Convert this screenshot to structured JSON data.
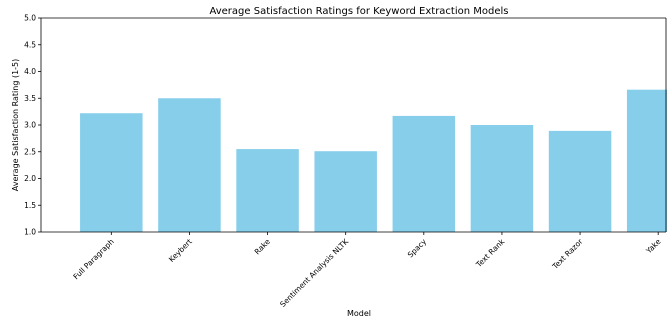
{
  "chart_data": {
    "type": "bar",
    "title": "Average Satisfaction Ratings for Keyword Extraction Models",
    "xlabel": "Model",
    "ylabel": "Average Satisfaction Rating (1-5)",
    "categories": [
      "Full Paragraph",
      "Keybert",
      "Rake",
      "Sentiment Analysis NLTK",
      "Spacy",
      "Text Rank",
      "Text Razor",
      "Yake"
    ],
    "values": [
      3.22,
      3.5,
      2.55,
      2.51,
      3.17,
      3.0,
      2.89,
      3.66
    ],
    "ylim": [
      1.0,
      5.0
    ],
    "yticks": [
      "1.0",
      "1.5",
      "2.0",
      "2.5",
      "3.0",
      "3.5",
      "4.0",
      "4.5",
      "5.0"
    ],
    "bar_color": "#87ceeb",
    "grid": false,
    "legend": "none"
  }
}
